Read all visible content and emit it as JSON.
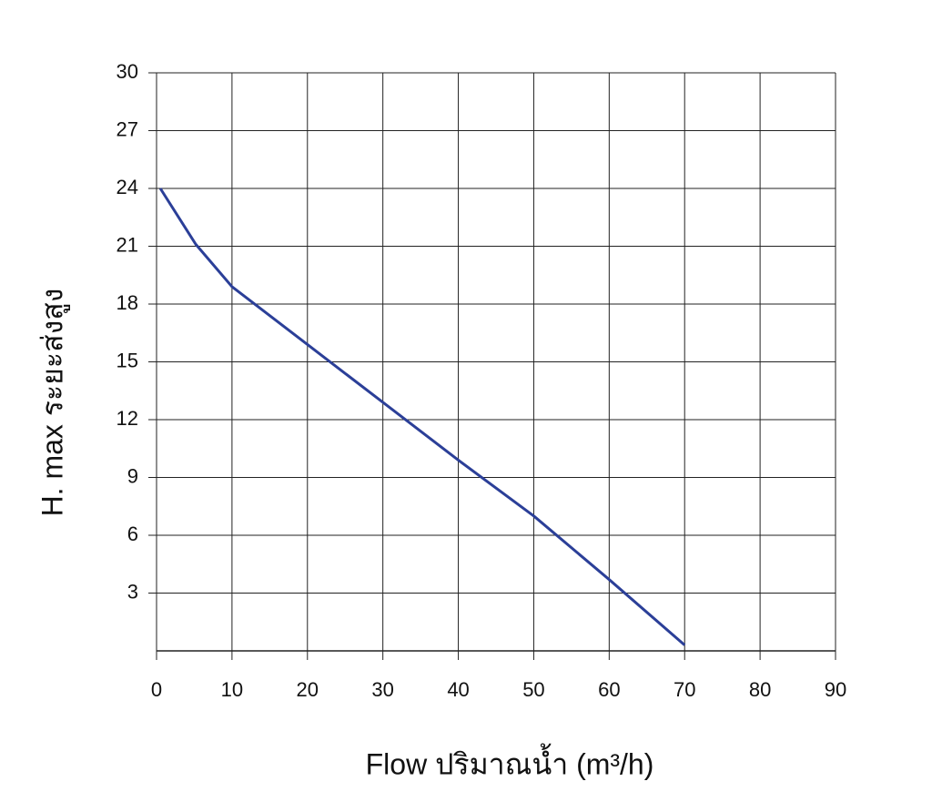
{
  "chart_data": {
    "type": "line",
    "x_label": "Flow  ปริมาณน้ำ (m³/h)",
    "y_label": "H. max  ระยะส่งสูง",
    "xlim": [
      0,
      90
    ],
    "xticks": [
      0,
      10,
      20,
      30,
      40,
      50,
      60,
      70,
      80,
      90
    ],
    "ylim": [
      0,
      30
    ],
    "yticks": [
      3,
      6,
      9,
      12,
      15,
      18,
      21,
      24,
      27,
      30
    ],
    "grid": true,
    "series": [
      {
        "color": "#2b3f98",
        "x": [
          0.5,
          5.2,
          10,
          20,
          30,
          40,
          50,
          60,
          70
        ],
        "values": [
          24,
          21.1,
          18.9,
          15.9,
          12.9,
          9.9,
          7,
          3.7,
          0.3
        ]
      }
    ]
  }
}
